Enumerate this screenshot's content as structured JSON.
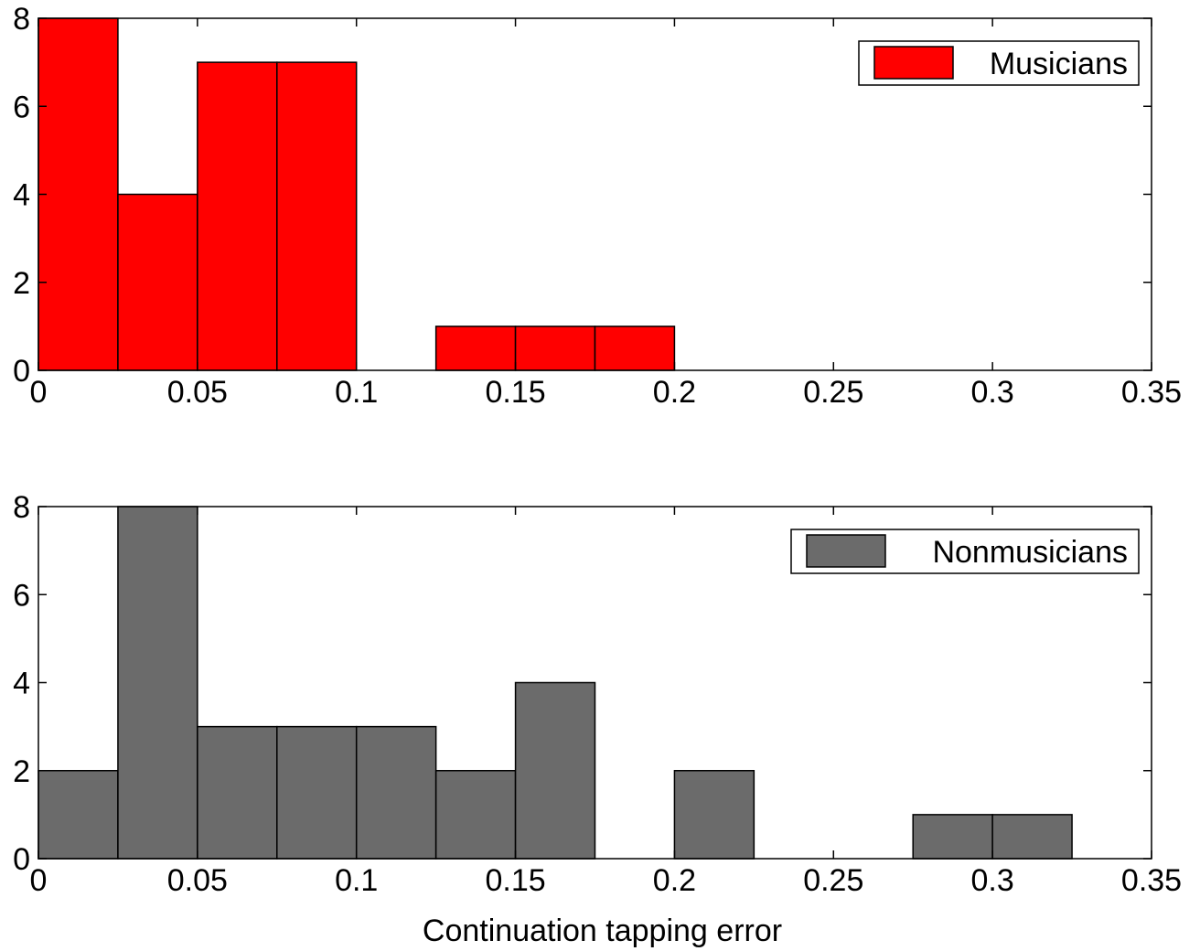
{
  "chart_data": [
    {
      "type": "bar",
      "title": "",
      "xlabel": "",
      "ylabel": "",
      "xlim": [
        0,
        0.35
      ],
      "ylim": [
        0,
        8
      ],
      "xticks": [
        0,
        0.05,
        0.1,
        0.15,
        0.2,
        0.25,
        0.3,
        0.35
      ],
      "xtick_labels": [
        "0",
        "0.05",
        "0.1",
        "0.15",
        "0.2",
        "0.25",
        "0.3",
        "0.35"
      ],
      "yticks": [
        0,
        2,
        4,
        6,
        8
      ],
      "ytick_labels": [
        "0",
        "2",
        "4",
        "6",
        "8"
      ],
      "grid": false,
      "legend_position": "top-right",
      "bin_width": 0.025,
      "series": [
        {
          "name": "Musicians",
          "color": "#ff0000",
          "bins": [
            {
              "x0": 0.0,
              "x1": 0.025,
              "count": 8
            },
            {
              "x0": 0.025,
              "x1": 0.05,
              "count": 4
            },
            {
              "x0": 0.05,
              "x1": 0.075,
              "count": 7
            },
            {
              "x0": 0.075,
              "x1": 0.1,
              "count": 7
            },
            {
              "x0": 0.1,
              "x1": 0.125,
              "count": 0
            },
            {
              "x0": 0.125,
              "x1": 0.15,
              "count": 1
            },
            {
              "x0": 0.15,
              "x1": 0.175,
              "count": 1
            },
            {
              "x0": 0.175,
              "x1": 0.2,
              "count": 1
            }
          ]
        }
      ]
    },
    {
      "type": "bar",
      "title": "",
      "xlabel": "Continuation tapping error",
      "ylabel": "",
      "xlim": [
        0,
        0.35
      ],
      "ylim": [
        0,
        8
      ],
      "xticks": [
        0,
        0.05,
        0.1,
        0.15,
        0.2,
        0.25,
        0.3,
        0.35
      ],
      "xtick_labels": [
        "0",
        "0.05",
        "0.1",
        "0.15",
        "0.2",
        "0.25",
        "0.3",
        "0.35"
      ],
      "yticks": [
        0,
        2,
        4,
        6,
        8
      ],
      "ytick_labels": [
        "0",
        "2",
        "4",
        "6",
        "8"
      ],
      "grid": false,
      "legend_position": "top-right",
      "bin_width": 0.025,
      "series": [
        {
          "name": "Nonmusicians",
          "color": "#6b6b6b",
          "bins": [
            {
              "x0": 0.0,
              "x1": 0.025,
              "count": 2
            },
            {
              "x0": 0.025,
              "x1": 0.05,
              "count": 8
            },
            {
              "x0": 0.05,
              "x1": 0.075,
              "count": 3
            },
            {
              "x0": 0.075,
              "x1": 0.1,
              "count": 3
            },
            {
              "x0": 0.1,
              "x1": 0.125,
              "count": 3
            },
            {
              "x0": 0.125,
              "x1": 0.15,
              "count": 2
            },
            {
              "x0": 0.15,
              "x1": 0.175,
              "count": 4
            },
            {
              "x0": 0.175,
              "x1": 0.2,
              "count": 0
            },
            {
              "x0": 0.2,
              "x1": 0.225,
              "count": 2
            },
            {
              "x0": 0.225,
              "x1": 0.25,
              "count": 0
            },
            {
              "x0": 0.25,
              "x1": 0.275,
              "count": 0
            },
            {
              "x0": 0.275,
              "x1": 0.3,
              "count": 1
            },
            {
              "x0": 0.3,
              "x1": 0.325,
              "count": 1
            }
          ]
        }
      ]
    }
  ]
}
